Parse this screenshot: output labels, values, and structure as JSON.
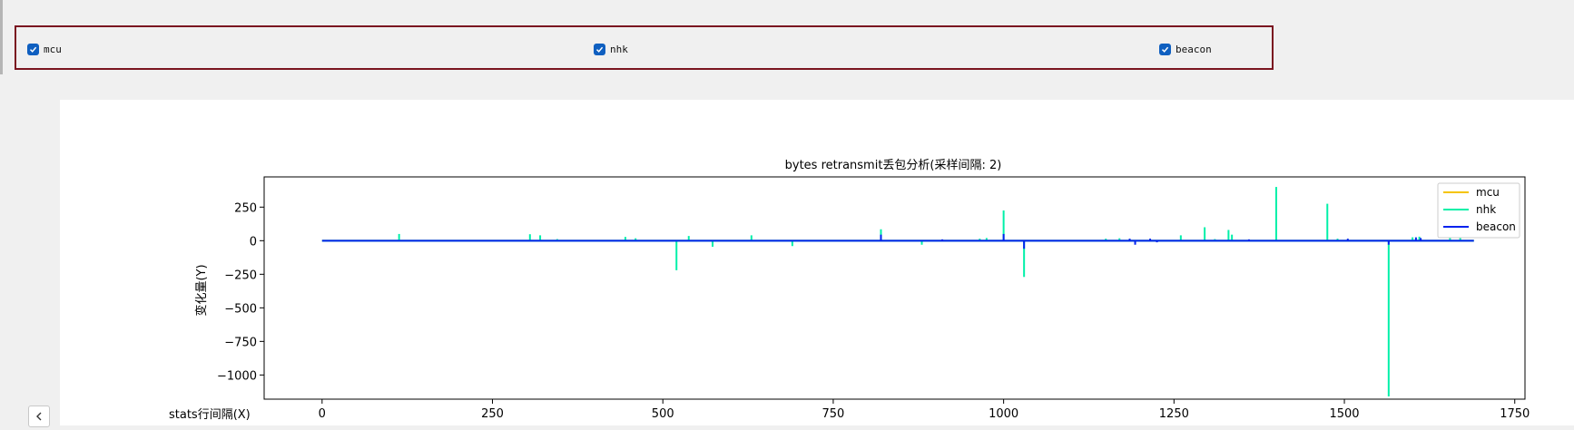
{
  "filters": [
    {
      "label": "mcu",
      "checked": true,
      "icon": "check-icon"
    },
    {
      "label": "nhk",
      "checked": true,
      "icon": "check-icon"
    },
    {
      "label": "beacon",
      "checked": true,
      "icon": "check-icon"
    }
  ],
  "side_button": {
    "icon": "chevron-left-icon"
  },
  "colors": {
    "panel_border": "#7a1520",
    "checkbox": "#0f5fc0",
    "mcu": "#f5c400",
    "nhk": "#00f0a8",
    "beacon": "#0022ee"
  },
  "chart_data": {
    "type": "line",
    "title": "bytes retransmit丢包分析(采样间隔: 2)",
    "xlabel": "stats行间隔(X)",
    "ylabel": "变化量(Y)",
    "xlim": [
      -85,
      1765
    ],
    "ylim": [
      -1180,
      475
    ],
    "x_ticks": [
      0,
      250,
      500,
      750,
      1000,
      1250,
      1500,
      1750
    ],
    "y_ticks": [
      250,
      0,
      -250,
      -500,
      -750,
      -1000
    ],
    "y_tick_labels": [
      "250",
      "0",
      "−250",
      "−500",
      "−750",
      "−1000"
    ],
    "legend_position": "top-right",
    "grid": false,
    "x_range": [
      0,
      1690
    ],
    "series": [
      {
        "name": "mcu",
        "color": "#f5c400",
        "baseline": 0,
        "points": []
      },
      {
        "name": "nhk",
        "color": "#00f0a8",
        "baseline": 0,
        "points": [
          [
            113,
            50
          ],
          [
            305,
            48
          ],
          [
            320,
            40
          ],
          [
            345,
            12
          ],
          [
            445,
            28
          ],
          [
            460,
            18
          ],
          [
            520,
            -220
          ],
          [
            538,
            35
          ],
          [
            573,
            -45
          ],
          [
            630,
            40
          ],
          [
            690,
            -40
          ],
          [
            820,
            85
          ],
          [
            880,
            -30
          ],
          [
            965,
            15
          ],
          [
            975,
            20
          ],
          [
            1000,
            225
          ],
          [
            1030,
            -270
          ],
          [
            1150,
            15
          ],
          [
            1170,
            18
          ],
          [
            1185,
            12
          ],
          [
            1260,
            40
          ],
          [
            1295,
            100
          ],
          [
            1310,
            12
          ],
          [
            1330,
            80
          ],
          [
            1335,
            45
          ],
          [
            1400,
            400
          ],
          [
            1475,
            275
          ],
          [
            1490,
            15
          ],
          [
            1565,
            -1160
          ],
          [
            1600,
            25
          ],
          [
            1610,
            30
          ],
          [
            1655,
            20
          ],
          [
            1670,
            130
          ]
        ]
      },
      {
        "name": "beacon",
        "color": "#0022ee",
        "baseline": 0,
        "points": [
          [
            820,
            45
          ],
          [
            910,
            10
          ],
          [
            1000,
            50
          ],
          [
            1030,
            -60
          ],
          [
            1185,
            15
          ],
          [
            1193,
            -30
          ],
          [
            1215,
            15
          ],
          [
            1225,
            -12
          ],
          [
            1360,
            10
          ],
          [
            1505,
            15
          ],
          [
            1565,
            -30
          ],
          [
            1605,
            25
          ],
          [
            1612,
            20
          ]
        ]
      }
    ]
  }
}
